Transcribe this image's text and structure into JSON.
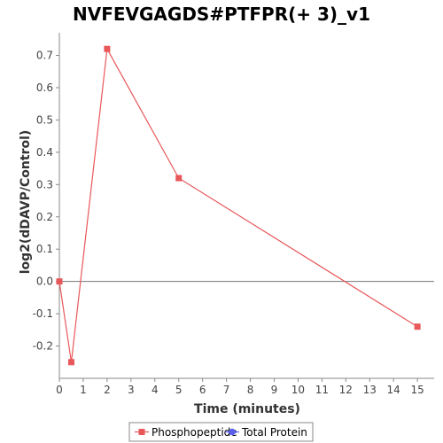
{
  "chart_data": {
    "type": "line",
    "title": "NVFEVGAGDS#PTFPR(+ 3)_v1",
    "xlabel": "Time (minutes)",
    "ylabel": "log2(dDAVP/Control)",
    "xlim": [
      0,
      15.7
    ],
    "ylim": [
      -0.3,
      0.77
    ],
    "xticks": [
      0,
      1,
      2,
      3,
      4,
      5,
      6,
      7,
      8,
      9,
      10,
      11,
      12,
      13,
      14,
      15
    ],
    "yticks": [
      -0.2,
      -0.1,
      0.0,
      0.1,
      0.2,
      0.3,
      0.4,
      0.5,
      0.6,
      0.7
    ],
    "ytick_labels": [
      "-0.2",
      "-0.1",
      "0.0",
      "0.1",
      "0.2",
      "0.3",
      "0.4",
      "0.5",
      "0.6",
      "0.7"
    ],
    "zero_line": true,
    "grid": false,
    "legend_position": "bottom",
    "series": [
      {
        "name": "Phosphopeptide",
        "color": "#e8575a",
        "marker": "square",
        "x": [
          0,
          0.5,
          2,
          5,
          15
        ],
        "y": [
          0.0,
          -0.25,
          0.72,
          0.32,
          -0.14
        ]
      }
    ],
    "legend": [
      {
        "label": "Phosphopeptide",
        "color": "#e8575a",
        "marker": "square"
      },
      {
        "label": "Total Protein",
        "color": "#5b5ef0",
        "marker": "circle"
      }
    ]
  }
}
